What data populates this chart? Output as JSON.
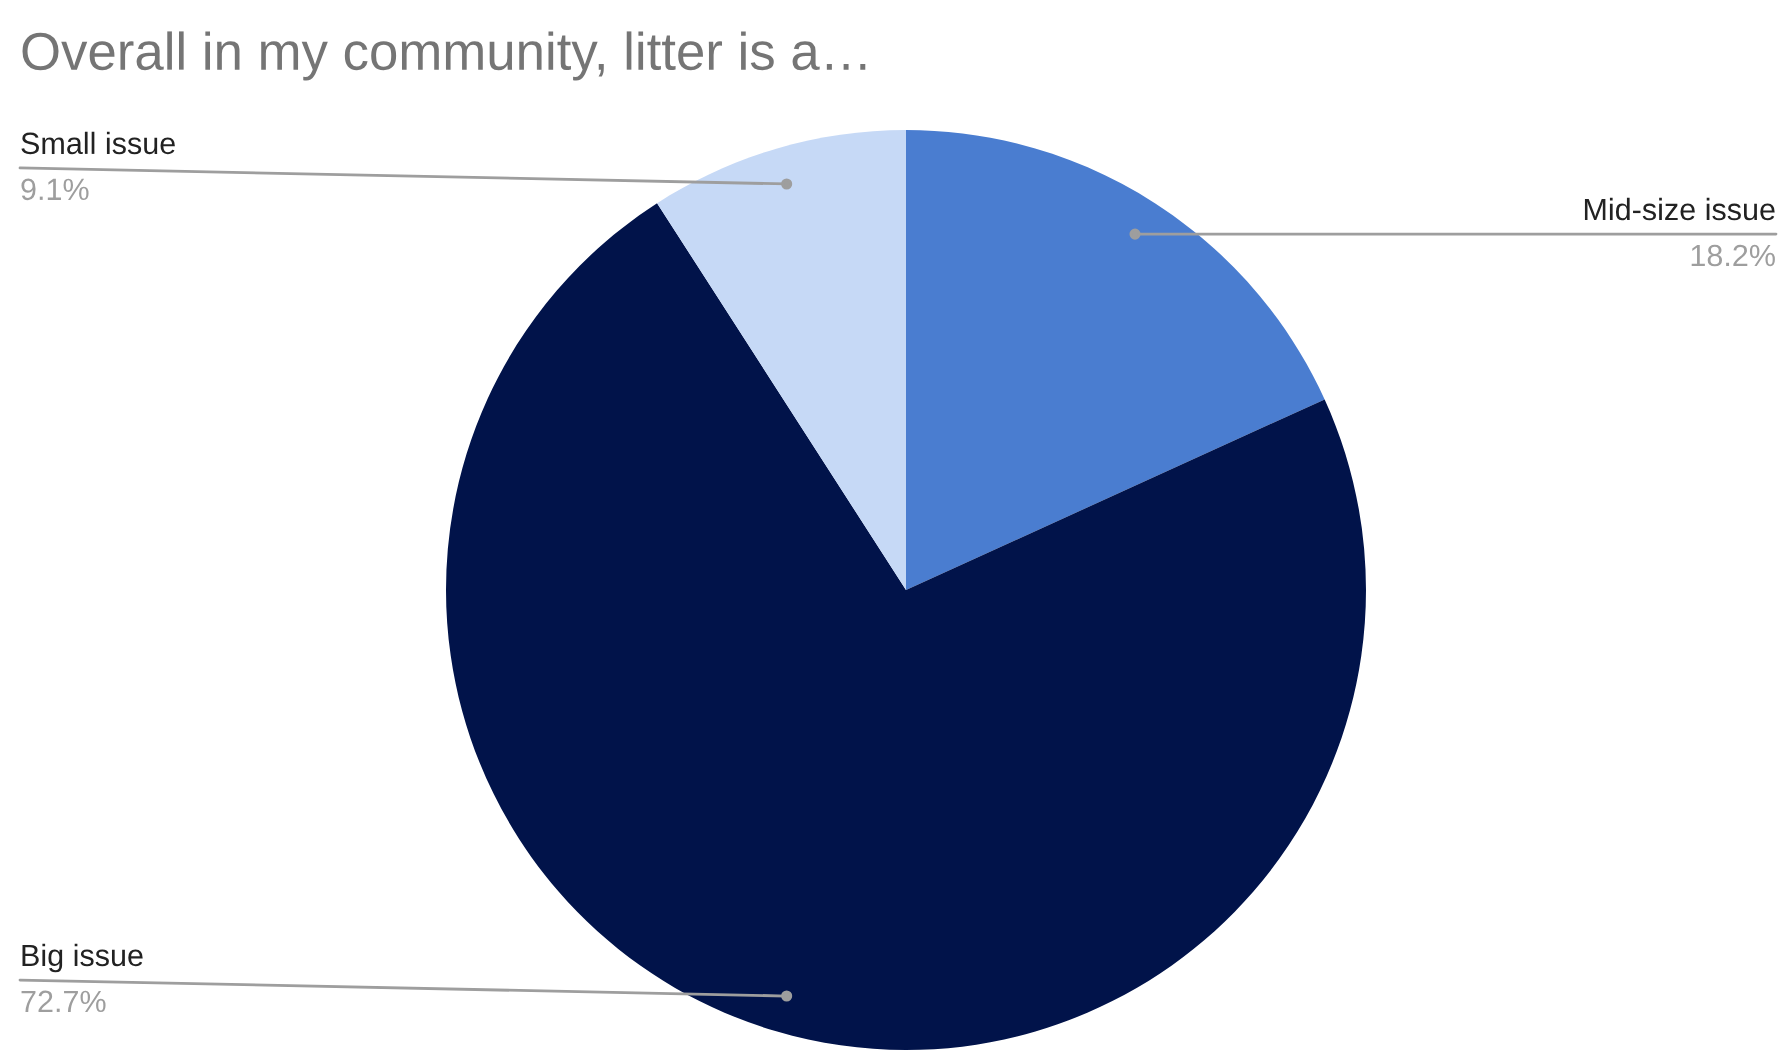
{
  "chart_data": {
    "type": "pie",
    "title": "Overall in my community, litter is a…",
    "categories": [
      "Mid-size issue",
      "Big issue",
      "Small issue"
    ],
    "values": [
      18.2,
      72.7,
      9.1
    ],
    "value_labels": [
      "18.2%",
      "72.7%",
      "9.1%"
    ],
    "colors": [
      "#4a7dd0",
      "#01134a",
      "#c6d9f6"
    ],
    "legend": false
  }
}
